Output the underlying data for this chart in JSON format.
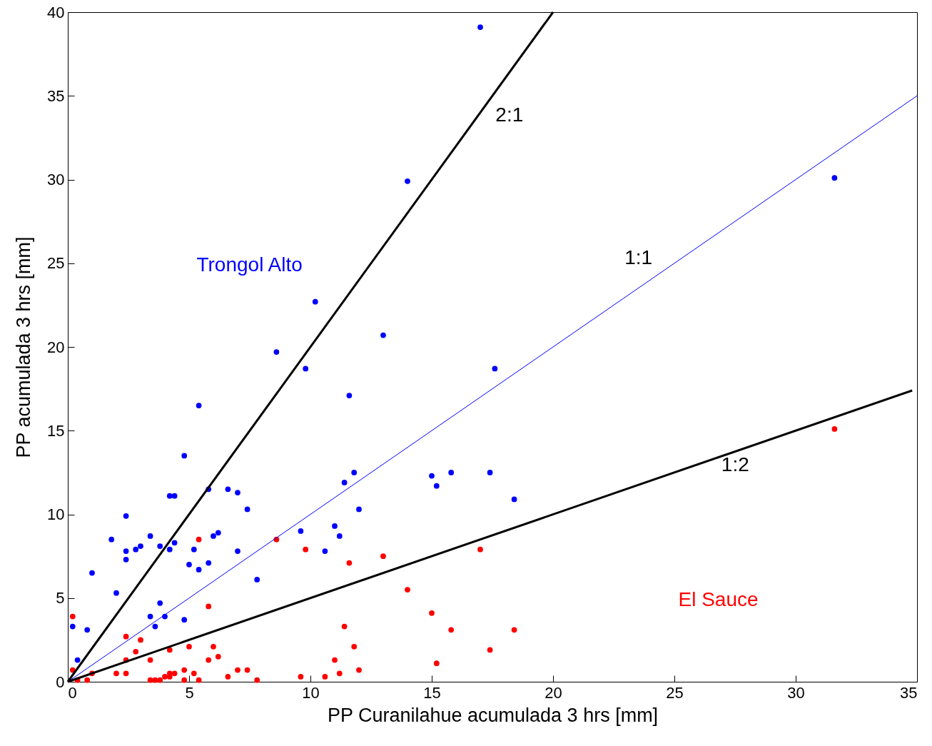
{
  "chart_data": {
    "type": "scatter",
    "xlabel": "PP Curanilahue acumulada 3 hrs [mm]",
    "ylabel": "PP acumulada 3 hrs [mm]",
    "xlim": [
      0,
      35
    ],
    "ylim": [
      0,
      40
    ],
    "xticks": [
      0,
      5,
      10,
      15,
      20,
      25,
      30,
      35
    ],
    "yticks": [
      0,
      5,
      10,
      15,
      20,
      25,
      30,
      35,
      40
    ],
    "grid": false,
    "marker": "circle",
    "series": [
      {
        "name": "Trongol Alto",
        "color": "#0000ff",
        "x": [
          0.2,
          0.4,
          0.8,
          1.0,
          1.8,
          2.0,
          2.4,
          2.4,
          2.4,
          2.8,
          3.0,
          3.4,
          3.4,
          3.6,
          3.8,
          3.8,
          4.0,
          4.2,
          4.2,
          4.4,
          4.4,
          4.8,
          4.8,
          5.0,
          5.2,
          5.4,
          5.4,
          5.8,
          5.8,
          6.0,
          6.2,
          6.6,
          7.0,
          7.0,
          7.4,
          7.8,
          8.6,
          9.6,
          9.8,
          10.2,
          10.6,
          11.0,
          11.2,
          11.4,
          11.6,
          11.8,
          12.0,
          13.0,
          14.0,
          15.0,
          15.2,
          15.8,
          17.0,
          17.4,
          17.6,
          18.4,
          31.6
        ],
        "values": [
          3.3,
          1.3,
          3.1,
          6.5,
          8.5,
          5.3,
          9.9,
          7.8,
          7.3,
          7.9,
          8.1,
          8.7,
          3.9,
          3.3,
          8.1,
          4.7,
          3.9,
          7.9,
          11.1,
          11.1,
          8.3,
          13.5,
          3.7,
          7.0,
          7.9,
          16.5,
          6.7,
          11.5,
          7.1,
          8.7,
          8.9,
          11.5,
          11.3,
          7.8,
          10.3,
          6.1,
          19.7,
          9.0,
          18.7,
          22.7,
          7.8,
          9.3,
          8.7,
          11.9,
          17.1,
          12.5,
          10.3,
          20.7,
          29.9,
          12.3,
          11.7,
          12.5,
          39.1,
          12.5,
          18.7,
          10.9,
          30.1
        ]
      },
      {
        "name": "El Sauce",
        "color": "#ff0000",
        "x": [
          0.2,
          0.2,
          0.4,
          0.8,
          1.0,
          2.0,
          2.4,
          2.4,
          2.4,
          2.8,
          3.0,
          3.4,
          3.4,
          3.6,
          3.8,
          4.0,
          4.2,
          4.2,
          4.2,
          4.4,
          4.8,
          4.8,
          5.0,
          5.2,
          5.4,
          5.4,
          5.8,
          5.8,
          6.0,
          6.2,
          6.6,
          7.0,
          7.4,
          7.8,
          8.6,
          9.6,
          9.8,
          10.6,
          11.0,
          11.2,
          11.4,
          11.6,
          11.8,
          12.0,
          13.0,
          14.0,
          15.0,
          15.2,
          15.8,
          17.0,
          17.4,
          18.4,
          31.6
        ],
        "values": [
          0.7,
          3.9,
          0.1,
          0.1,
          0.5,
          0.5,
          0.5,
          1.3,
          2.7,
          1.8,
          2.5,
          1.3,
          0.1,
          0.1,
          0.1,
          0.3,
          0.3,
          1.9,
          0.5,
          0.5,
          0.1,
          0.7,
          2.1,
          0.5,
          0.1,
          8.5,
          4.5,
          1.3,
          2.1,
          1.5,
          0.3,
          0.7,
          0.7,
          0.1,
          8.5,
          0.3,
          7.9,
          0.3,
          1.3,
          0.5,
          3.3,
          7.1,
          2.1,
          0.7,
          7.5,
          5.5,
          4.1,
          1.1,
          3.1,
          7.9,
          1.9,
          3.1,
          15.1
        ]
      },
      {
        "name": "2:1",
        "color": "#000000",
        "type": "line",
        "marker": "none",
        "x": [
          0,
          20
        ],
        "values": [
          0,
          40
        ]
      },
      {
        "name": "1:1",
        "color": "#0000ff",
        "type": "line",
        "marker": "none",
        "x": [
          0,
          35
        ],
        "values": [
          0,
          35
        ]
      },
      {
        "name": "1:2",
        "color": "#000000",
        "type": "line",
        "marker": "none",
        "x": [
          0,
          34.8
        ],
        "values": [
          0,
          17.4
        ]
      }
    ]
  }
}
